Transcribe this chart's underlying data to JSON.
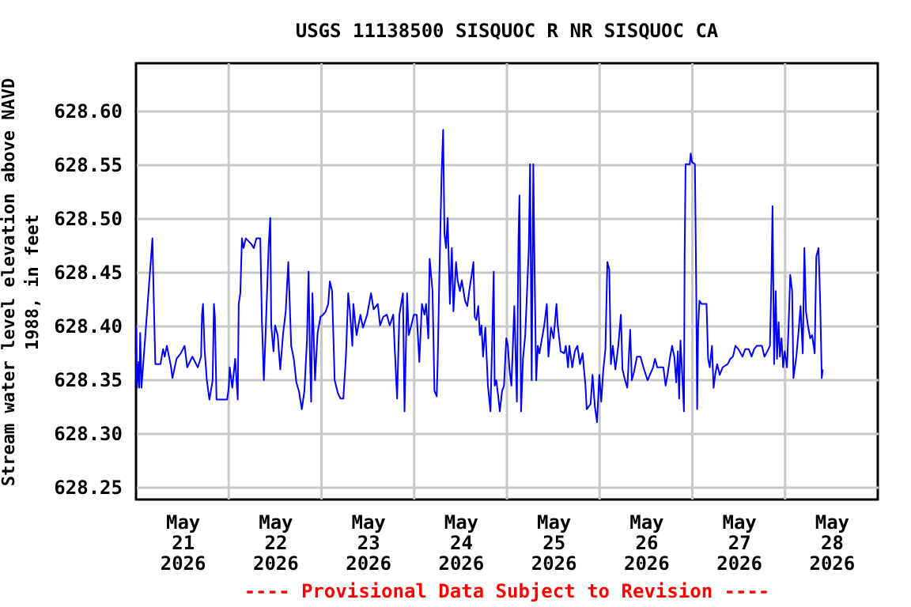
{
  "chart_data": {
    "type": "line",
    "title": "USGS 11138500 SISQUOC R NR SISQUOC CA",
    "ylabel": "Stream water level elevation above NAVD 1988, in feet",
    "annotations": [
      "---- Provisional Data Subject to Revision ----"
    ],
    "xlim": [
      "2026-05-21T00:00",
      "2026-05-29T00:00"
    ],
    "xticks": [
      {
        "value": "2026-05-21T12:00",
        "label": "May 21 2026"
      },
      {
        "value": "2026-05-22T12:00",
        "label": "May 22 2026"
      },
      {
        "value": "2026-05-23T12:00",
        "label": "May 23 2026"
      },
      {
        "value": "2026-05-24T12:00",
        "label": "May 24 2026"
      },
      {
        "value": "2026-05-25T12:00",
        "label": "May 25 2026"
      },
      {
        "value": "2026-05-26T12:00",
        "label": "May 26 2026"
      },
      {
        "value": "2026-05-27T12:00",
        "label": "May 27 2026"
      },
      {
        "value": "2026-05-28T12:00",
        "label": "May 28 2026"
      },
      {
        "value": "2026-05-22T00:00",
        "label": null
      },
      {
        "value": "2026-05-23T00:00",
        "label": null
      },
      {
        "value": "2026-05-24T00:00",
        "label": null
      },
      {
        "value": "2026-05-25T00:00",
        "label": null
      },
      {
        "value": "2026-05-26T00:00",
        "label": null
      },
      {
        "value": "2026-05-27T00:00",
        "label": null
      },
      {
        "value": "2026-05-28T00:00",
        "label": null
      }
    ],
    "ylim": [
      628.238,
      628.644
    ],
    "yticks": [
      {
        "value": 628.25,
        "label": "628.25"
      },
      {
        "value": 628.3,
        "label": "628.30"
      },
      {
        "value": 628.35,
        "label": "628.35"
      },
      {
        "value": 628.4,
        "label": "628.40"
      },
      {
        "value": 628.45,
        "label": "628.45"
      },
      {
        "value": 628.5,
        "label": "628.50"
      },
      {
        "value": 628.55,
        "label": "628.55"
      },
      {
        "value": 628.6,
        "label": "628.60"
      }
    ],
    "grid": true,
    "x": [
      "2026-05-21T00:00",
      "2026-05-21T00:15",
      "2026-05-21T00:40",
      "2026-05-21T00:50",
      "2026-05-21T01:05",
      "2026-05-21T01:25",
      "2026-05-21T04:15",
      "2026-05-21T04:35",
      "2026-05-21T05:00",
      "2026-05-21T06:20",
      "2026-05-21T07:00",
      "2026-05-21T07:25",
      "2026-05-21T08:00",
      "2026-05-21T09:05",
      "2026-05-21T09:25",
      "2026-05-21T10:30",
      "2026-05-21T11:35",
      "2026-05-21T12:35",
      "2026-05-21T13:15",
      "2026-05-21T14:35",
      "2026-05-21T16:00",
      "2026-05-21T16:50",
      "2026-05-21T17:05",
      "2026-05-21T17:20",
      "2026-05-21T17:45",
      "2026-05-21T18:20",
      "2026-05-21T19:00",
      "2026-05-21T19:50",
      "2026-05-21T20:10",
      "2026-05-21T20:25",
      "2026-05-21T20:50",
      "2026-05-21T23:35",
      "2026-05-22T00:00",
      "2026-05-22T00:15",
      "2026-05-22T00:55",
      "2026-05-22T01:40",
      "2026-05-22T02:20",
      "2026-05-22T02:35",
      "2026-05-22T03:00",
      "2026-05-22T03:25",
      "2026-05-22T03:50",
      "2026-05-22T04:25",
      "2026-05-22T05:45",
      "2026-05-22T06:30",
      "2026-05-22T07:10",
      "2026-05-22T08:10",
      "2026-05-22T08:35",
      "2026-05-22T09:05",
      "2026-05-22T09:30",
      "2026-05-22T10:20",
      "2026-05-22T10:45",
      "2026-05-22T11:00",
      "2026-05-22T11:35",
      "2026-05-22T12:00",
      "2026-05-22T12:40",
      "2026-05-22T13:20",
      "2026-05-22T14:05",
      "2026-05-22T14:45",
      "2026-05-22T15:25",
      "2026-05-22T16:10",
      "2026-05-22T16:50",
      "2026-05-22T17:30",
      "2026-05-22T18:10",
      "2026-05-22T18:55",
      "2026-05-22T19:35",
      "2026-05-22T20:15",
      "2026-05-22T20:40",
      "2026-05-22T21:00",
      "2026-05-22T21:20",
      "2026-05-22T21:40",
      "2026-05-22T22:20",
      "2026-05-22T23:00",
      "2026-05-22T23:45",
      "2026-05-23T00:25",
      "2026-05-23T01:05",
      "2026-05-23T01:45",
      "2026-05-23T02:10",
      "2026-05-23T02:45",
      "2026-05-23T03:25",
      "2026-05-23T04:15",
      "2026-05-23T04:55",
      "2026-05-23T05:40",
      "2026-05-23T06:20",
      "2026-05-23T06:55",
      "2026-05-23T07:20",
      "2026-05-23T08:00",
      "2026-05-23T08:15",
      "2026-05-23T09:05",
      "2026-05-23T10:05",
      "2026-05-23T10:45",
      "2026-05-23T11:50",
      "2026-05-23T12:50",
      "2026-05-23T13:30",
      "2026-05-23T14:35",
      "2026-05-23T15:10",
      "2026-05-23T16:00",
      "2026-05-23T16:55",
      "2026-05-23T17:40",
      "2026-05-23T18:35",
      "2026-05-23T19:00",
      "2026-05-23T19:35",
      "2026-05-23T20:10",
      "2026-05-23T21:05",
      "2026-05-23T21:30",
      "2026-05-23T22:10",
      "2026-05-23T22:35",
      "2026-05-23T23:15",
      "2026-05-23T23:55",
      "2026-05-24T00:40",
      "2026-05-24T01:20",
      "2026-05-24T02:00",
      "2026-05-24T02:40",
      "2026-05-24T03:05",
      "2026-05-24T03:40",
      "2026-05-24T04:00",
      "2026-05-24T04:45",
      "2026-05-24T05:15",
      "2026-05-24T05:50",
      "2026-05-24T06:05",
      "2026-05-24T06:30",
      "2026-05-24T07:05",
      "2026-05-24T07:30",
      "2026-05-24T07:50",
      "2026-05-24T08:15",
      "2026-05-24T08:40",
      "2026-05-24T09:15",
      "2026-05-24T09:45",
      "2026-05-24T10:10",
      "2026-05-24T10:50",
      "2026-05-24T11:15",
      "2026-05-24T11:50",
      "2026-05-24T12:20",
      "2026-05-24T13:10",
      "2026-05-24T13:45",
      "2026-05-24T14:15",
      "2026-05-24T15:00",
      "2026-05-24T15:20",
      "2026-05-24T15:40",
      "2026-05-24T16:05",
      "2026-05-24T16:35",
      "2026-05-24T17:00",
      "2026-05-24T17:25",
      "2026-05-24T17:50",
      "2026-05-24T18:25",
      "2026-05-24T19:05",
      "2026-05-24T19:45",
      "2026-05-24T20:10",
      "2026-05-24T20:35",
      "2026-05-24T20:50",
      "2026-05-24T21:15",
      "2026-05-24T21:45",
      "2026-05-24T22:10",
      "2026-05-24T22:45",
      "2026-05-24T23:15",
      "2026-05-24T23:50",
      "2026-05-25T00:15",
      "2026-05-25T00:40",
      "2026-05-25T01:10",
      "2026-05-25T01:55",
      "2026-05-25T02:35",
      "2026-05-25T03:00",
      "2026-05-25T03:15",
      "2026-05-25T03:40",
      "2026-05-25T04:10",
      "2026-05-25T04:45",
      "2026-05-25T05:20",
      "2026-05-25T05:40",
      "2026-05-25T06:00",
      "2026-05-25T06:25",
      "2026-05-25T06:50",
      "2026-05-25T07:10",
      "2026-05-25T07:35",
      "2026-05-25T08:00",
      "2026-05-25T08:25",
      "2026-05-25T09:05",
      "2026-05-25T09:40",
      "2026-05-25T10:20",
      "2026-05-25T10:45",
      "2026-05-25T11:25",
      "2026-05-25T12:05",
      "2026-05-25T12:50",
      "2026-05-25T13:10",
      "2026-05-25T13:55",
      "2026-05-25T14:50",
      "2026-05-25T15:15",
      "2026-05-25T15:50",
      "2026-05-25T16:10",
      "2026-05-25T16:55",
      "2026-05-25T17:35",
      "2026-05-25T18:15",
      "2026-05-25T18:55",
      "2026-05-25T19:35",
      "2026-05-25T20:20",
      "2026-05-25T20:40",
      "2026-05-25T21:40",
      "2026-05-25T22:10",
      "2026-05-25T22:45",
      "2026-05-25T23:20",
      "2026-05-25T23:55",
      "2026-05-26T00:25",
      "2026-05-26T00:55",
      "2026-05-26T01:30",
      "2026-05-26T02:00",
      "2026-05-26T02:30",
      "2026-05-26T02:55",
      "2026-05-26T03:25",
      "2026-05-26T04:05",
      "2026-05-26T04:50",
      "2026-05-26T05:30",
      "2026-05-26T05:55",
      "2026-05-26T06:35",
      "2026-05-26T07:10",
      "2026-05-26T07:55",
      "2026-05-26T08:20",
      "2026-05-26T08:55",
      "2026-05-26T09:40",
      "2026-05-26T10:35",
      "2026-05-26T11:20",
      "2026-05-26T12:25",
      "2026-05-26T13:50",
      "2026-05-26T14:20",
      "2026-05-26T14:55",
      "2026-05-26T16:30",
      "2026-05-26T17:05",
      "2026-05-26T17:35",
      "2026-05-26T18:10",
      "2026-05-26T18:45",
      "2026-05-26T19:20",
      "2026-05-26T19:50",
      "2026-05-26T20:15",
      "2026-05-26T20:35",
      "2026-05-26T20:55",
      "2026-05-26T21:25",
      "2026-05-26T21:50",
      "2026-05-26T22:00",
      "2026-05-26T22:15",
      "2026-05-26T23:20",
      "2026-05-26T23:35",
      "2026-05-26T23:55",
      "2026-05-27T00:40",
      "2026-05-27T01:00",
      "2026-05-27T01:15",
      "2026-05-27T01:30",
      "2026-05-27T01:50",
      "2026-05-27T02:20",
      "2026-05-27T03:40",
      "2026-05-27T04:05",
      "2026-05-27T04:30",
      "2026-05-27T05:05",
      "2026-05-27T05:30",
      "2026-05-27T05:55",
      "2026-05-27T06:25",
      "2026-05-27T07:05",
      "2026-05-27T07:50",
      "2026-05-27T09:10",
      "2026-05-27T09:50",
      "2026-05-27T10:30",
      "2026-05-27T11:10",
      "2026-05-27T11:55",
      "2026-05-27T13:00",
      "2026-05-27T13:40",
      "2026-05-27T14:35",
      "2026-05-27T15:20",
      "2026-05-27T16:00",
      "2026-05-27T16:40",
      "2026-05-27T18:00",
      "2026-05-27T18:40",
      "2026-05-27T19:25",
      "2026-05-27T20:05",
      "2026-05-27T20:30",
      "2026-05-27T20:45",
      "2026-05-27T21:10",
      "2026-05-27T21:35",
      "2026-05-27T21:55",
      "2026-05-27T22:20",
      "2026-05-27T22:40",
      "2026-05-27T23:05",
      "2026-05-27T23:30",
      "2026-05-27T23:55",
      "2026-05-28T00:30",
      "2026-05-28T00:55",
      "2026-05-28T01:20",
      "2026-05-28T01:50",
      "2026-05-28T02:10",
      "2026-05-28T02:55",
      "2026-05-28T03:35",
      "2026-05-28T04:00",
      "2026-05-28T04:35",
      "2026-05-28T05:00",
      "2026-05-28T05:25",
      "2026-05-28T05:55",
      "2026-05-28T06:30",
      "2026-05-28T07:00",
      "2026-05-28T07:40",
      "2026-05-28T08:05",
      "2026-05-28T08:40",
      "2026-05-28T09:05",
      "2026-05-28T09:30",
      "2026-05-28T09:45"
    ],
    "series": [
      {
        "color": "#0000ff",
        "values": [
          628.4,
          628.342,
          628.366,
          628.342,
          628.393,
          628.342,
          628.481,
          628.425,
          628.364,
          628.364,
          628.378,
          628.371,
          628.381,
          628.361,
          628.351,
          628.369,
          628.374,
          628.381,
          628.361,
          628.371,
          628.361,
          628.371,
          628.41,
          628.42,
          628.378,
          628.349,
          628.331,
          628.349,
          628.42,
          628.408,
          628.331,
          628.331,
          628.342,
          628.361,
          628.342,
          628.369,
          628.331,
          628.42,
          628.43,
          628.481,
          628.472,
          628.481,
          628.476,
          628.472,
          628.481,
          628.481,
          628.405,
          628.349,
          628.388,
          628.474,
          628.5,
          628.4,
          628.376,
          628.4,
          628.391,
          628.359,
          628.393,
          628.413,
          628.459,
          628.381,
          628.369,
          628.347,
          628.339,
          628.322,
          628.339,
          628.386,
          628.45,
          628.376,
          628.329,
          628.43,
          628.349,
          628.393,
          628.408,
          628.41,
          628.413,
          628.42,
          628.441,
          628.432,
          628.349,
          628.337,
          628.332,
          628.332,
          628.371,
          628.43,
          628.415,
          628.381,
          628.42,
          628.391,
          628.41,
          628.398,
          628.41,
          628.43,
          628.415,
          628.42,
          628.4,
          628.408,
          628.41,
          628.4,
          628.41,
          628.376,
          628.332,
          628.41,
          628.43,
          628.32,
          628.43,
          628.391,
          628.4,
          628.41,
          628.41,
          628.366,
          628.42,
          628.41,
          628.42,
          628.388,
          628.462,
          628.432,
          628.339,
          628.334,
          628.366,
          628.442,
          628.54,
          628.582,
          628.486,
          628.472,
          628.5,
          628.42,
          628.472,
          628.413,
          628.459,
          628.442,
          628.432,
          628.442,
          628.423,
          628.418,
          628.432,
          628.45,
          628.459,
          628.408,
          628.405,
          628.418,
          628.391,
          628.4,
          628.371,
          628.398,
          628.344,
          628.32,
          628.383,
          628.45,
          628.344,
          628.349,
          628.334,
          628.32,
          628.339,
          628.344,
          628.388,
          628.381,
          628.359,
          628.344,
          628.418,
          628.329,
          628.481,
          628.521,
          628.32,
          628.369,
          628.391,
          628.442,
          628.472,
          628.55,
          628.349,
          628.55,
          628.45,
          628.349,
          628.381,
          628.374,
          628.388,
          628.4,
          628.42,
          628.371,
          628.398,
          628.388,
          628.42,
          628.4,
          628.376,
          628.374,
          628.381,
          628.361,
          628.381,
          628.361,
          628.376,
          628.381,
          628.364,
          628.374,
          628.344,
          628.322,
          628.327,
          628.354,
          628.325,
          628.31,
          628.354,
          628.329,
          628.357,
          628.378,
          628.459,
          628.452,
          628.364,
          628.381,
          628.359,
          628.381,
          628.41,
          628.359,
          628.349,
          628.342,
          628.396,
          628.349,
          628.357,
          628.371,
          628.371,
          628.361,
          628.349,
          628.361,
          628.369,
          628.361,
          628.361,
          628.344,
          628.354,
          628.369,
          628.381,
          628.371,
          628.347,
          628.376,
          628.332,
          628.386,
          628.352,
          628.32,
          628.464,
          628.55,
          628.55,
          628.56,
          628.552,
          628.55,
          628.437,
          628.322,
          628.398,
          628.423,
          628.42,
          628.42,
          628.369,
          628.361,
          628.381,
          628.342,
          628.354,
          628.364,
          628.354,
          628.361,
          628.364,
          628.369,
          628.371,
          628.381,
          628.378,
          628.371,
          628.378,
          628.378,
          628.371,
          628.378,
          628.381,
          628.381,
          628.371,
          628.376,
          628.381,
          628.447,
          628.511,
          628.364,
          628.432,
          628.369,
          628.403,
          628.371,
          628.388,
          628.361,
          628.376,
          628.361,
          628.4,
          628.447,
          628.432,
          628.351,
          628.371,
          628.398,
          628.418,
          628.374,
          628.472,
          628.413,
          628.4,
          628.388,
          628.391,
          628.374,
          628.464,
          628.472,
          628.423,
          628.351,
          628.359
        ]
      }
    ]
  }
}
